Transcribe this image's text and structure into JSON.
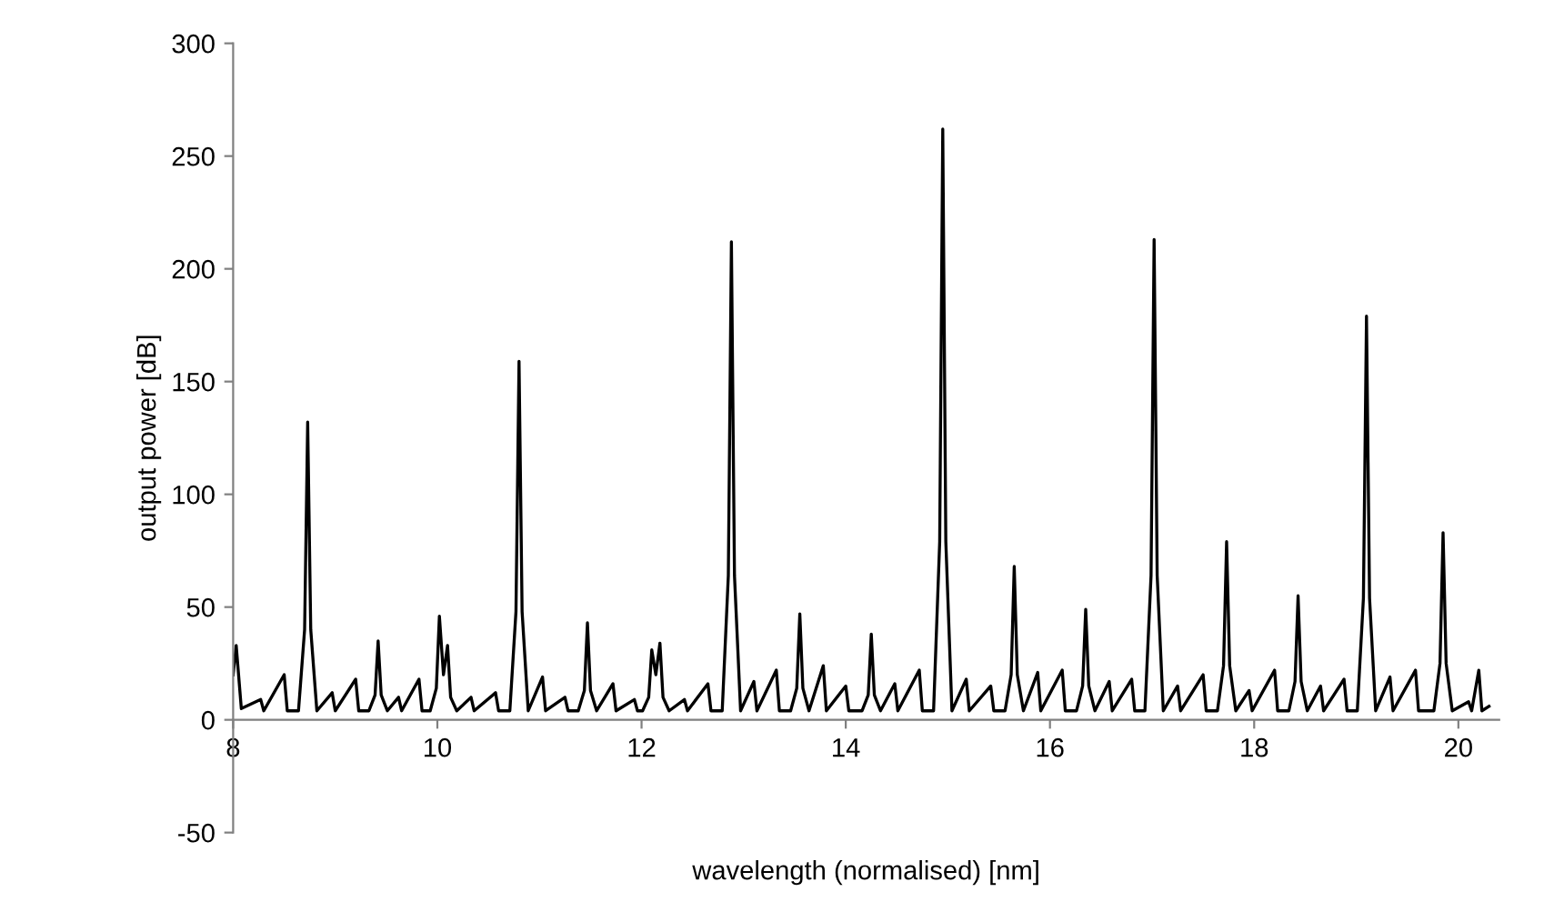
{
  "chart_data": {
    "type": "line",
    "xlabel": "wavelength (normalised) [nm]",
    "ylabel": "output power [dB]",
    "xlim": [
      8,
      20.4
    ],
    "xticks": [
      8,
      10,
      12,
      14,
      16,
      18,
      20
    ],
    "ylim": [
      -50,
      300
    ],
    "yticks": [
      -50,
      0,
      50,
      100,
      150,
      200,
      250,
      300
    ],
    "grid": false,
    "marker": "none",
    "line_style": "solid",
    "series": [
      {
        "color": "#000000",
        "x": [
          8.0,
          8.03,
          8.08,
          8.27,
          8.3,
          8.5,
          8.53,
          8.64,
          8.7,
          8.73,
          8.76,
          8.82,
          8.97,
          9.0,
          9.2,
          9.23,
          9.33,
          9.39,
          9.42,
          9.45,
          9.51,
          9.62,
          9.65,
          9.82,
          9.85,
          9.93,
          9.99,
          10.02,
          10.06,
          10.1,
          10.13,
          10.19,
          10.33,
          10.36,
          10.57,
          10.6,
          10.71,
          10.77,
          10.8,
          10.83,
          10.89,
          11.03,
          11.06,
          11.25,
          11.28,
          11.38,
          11.44,
          11.47,
          11.5,
          11.56,
          11.72,
          11.75,
          11.93,
          11.96,
          12.01,
          12.07,
          12.1,
          12.14,
          12.18,
          12.21,
          12.27,
          12.42,
          12.45,
          12.65,
          12.68,
          12.79,
          12.85,
          12.88,
          12.91,
          12.97,
          13.1,
          13.13,
          13.32,
          13.35,
          13.46,
          13.52,
          13.55,
          13.58,
          13.64,
          13.78,
          13.81,
          14.0,
          14.03,
          14.16,
          14.22,
          14.25,
          14.28,
          14.34,
          14.48,
          14.51,
          14.72,
          14.75,
          14.86,
          14.92,
          14.95,
          14.98,
          15.04,
          15.18,
          15.21,
          15.42,
          15.45,
          15.56,
          15.62,
          15.65,
          15.68,
          15.74,
          15.88,
          15.91,
          16.12,
          16.15,
          16.26,
          16.32,
          16.35,
          16.38,
          16.44,
          16.58,
          16.61,
          16.8,
          16.83,
          16.93,
          16.99,
          17.02,
          17.05,
          17.11,
          17.25,
          17.28,
          17.5,
          17.53,
          17.64,
          17.7,
          17.73,
          17.76,
          17.82,
          17.95,
          17.98,
          18.2,
          18.23,
          18.34,
          18.4,
          18.43,
          18.46,
          18.52,
          18.65,
          18.68,
          18.88,
          18.91,
          19.01,
          19.07,
          19.1,
          19.13,
          19.19,
          19.33,
          19.36,
          19.58,
          19.61,
          19.76,
          19.82,
          19.85,
          19.88,
          19.94,
          20.1,
          20.13,
          20.2,
          20.23,
          20.3
        ],
        "values": [
          20,
          33,
          5,
          9,
          4,
          20,
          4,
          4,
          40,
          132,
          40,
          4,
          12,
          4,
          18,
          4,
          4,
          11,
          35,
          11,
          4,
          10,
          4,
          18,
          4,
          4,
          14,
          46,
          20,
          33,
          10,
          4,
          10,
          4,
          12,
          4,
          4,
          48,
          159,
          48,
          4,
          19,
          4,
          10,
          4,
          4,
          13,
          43,
          13,
          4,
          16,
          4,
          9,
          4,
          4,
          10,
          31,
          20,
          34,
          10,
          4,
          9,
          4,
          16,
          4,
          4,
          64,
          212,
          64,
          4,
          17,
          4,
          22,
          4,
          4,
          14,
          47,
          14,
          4,
          24,
          4,
          15,
          4,
          4,
          11,
          38,
          11,
          4,
          16,
          4,
          22,
          4,
          4,
          79,
          262,
          79,
          4,
          18,
          4,
          15,
          4,
          4,
          20,
          68,
          20,
          4,
          21,
          4,
          22,
          4,
          4,
          15,
          49,
          15,
          4,
          17,
          4,
          18,
          4,
          4,
          64,
          213,
          64,
          4,
          15,
          4,
          20,
          4,
          4,
          24,
          79,
          24,
          4,
          13,
          4,
          22,
          4,
          4,
          17,
          55,
          17,
          4,
          15,
          4,
          18,
          4,
          4,
          54,
          179,
          54,
          4,
          19,
          4,
          22,
          4,
          4,
          25,
          83,
          25,
          4,
          8,
          4,
          22,
          4,
          6
        ]
      }
    ]
  }
}
